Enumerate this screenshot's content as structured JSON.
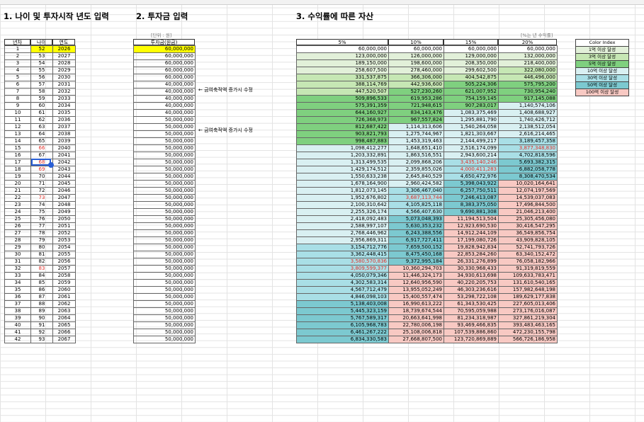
{
  "sections": {
    "s1": "1. 나이 및 투자시작 년도 입력",
    "s2": "2. 투자금 입력",
    "s3": "3. 수익률에 따른 자산",
    "unit": "[단위 : 원]",
    "note_right": "[%는 년 수익률]"
  },
  "headers": {
    "year": "년차",
    "age": "나이",
    "yr": "연도",
    "inv": "투자금(원금)",
    "r5": "5%",
    "r10": "10%",
    "r15": "15%",
    "r20": "20%"
  },
  "notes": {
    "n1": "← 금여축적액 증가시 수정",
    "n2": "← 금여축적액 증가시 수정"
  },
  "legend": {
    "title": "Color Index",
    "items": [
      "1억 이상 달성",
      "3억 이상 달성",
      "5억 이상 달성",
      "10억 이상 달성",
      "30억 이상 달성",
      "50억 이상 달성",
      "100억 이상 달성"
    ]
  },
  "colors": {
    "g1": "#e2f0d9",
    "g3": "#c6e7b4",
    "g5": "#7fd07f",
    "g10": "#d9f0f2",
    "g30": "#a9dfe6",
    "g50": "#7cc9d0",
    "g100": "#f8c9c3",
    "yellow": "#ffff00",
    "red": "#e0302a"
  },
  "rows": [
    {
      "n": "1",
      "age": "52",
      "yr": "2026",
      "inv": "60,000,000",
      "a": "60,000,000",
      "b": "60,000,000",
      "c": "60,000,000",
      "d": "60,000,000"
    },
    {
      "n": "2",
      "age": "53",
      "yr": "2027",
      "inv": "60,000,000",
      "a": "123,000,000",
      "b": "126,000,000",
      "c": "129,000,000",
      "d": "132,000,000"
    },
    {
      "n": "3",
      "age": "54",
      "yr": "2028",
      "inv": "60,000,000",
      "a": "189,150,000",
      "b": "198,600,000",
      "c": "208,350,000",
      "d": "218,400,000"
    },
    {
      "n": "4",
      "age": "55",
      "yr": "2029",
      "inv": "60,000,000",
      "a": "258,607,500",
      "b": "278,460,000",
      "c": "299,602,500",
      "d": "322,080,000"
    },
    {
      "n": "5",
      "age": "56",
      "yr": "2030",
      "inv": "60,000,000",
      "a": "331,537,875",
      "b": "366,306,000",
      "c": "404,542,875",
      "d": "446,496,000"
    },
    {
      "n": "6",
      "age": "57",
      "yr": "2031",
      "inv": "40,000,000",
      "a": "388,114,769",
      "b": "442,936,600",
      "c": "505,224,306",
      "d": "575,795,200"
    },
    {
      "n": "7",
      "age": "58",
      "yr": "2032",
      "inv": "40,000,000",
      "a": "447,520,507",
      "b": "527,230,260",
      "c": "621,007,952",
      "d": "730,954,240"
    },
    {
      "n": "8",
      "age": "59",
      "yr": "2033",
      "inv": "40,000,000",
      "a": "509,896,533",
      "b": "619,953,286",
      "c": "754,159,145",
      "d": "917,145,088"
    },
    {
      "n": "9",
      "age": "60",
      "yr": "2034",
      "inv": "40,000,000",
      "a": "575,391,359",
      "b": "721,948,615",
      "c": "907,283,017",
      "d": "1,140,574,106"
    },
    {
      "n": "10",
      "age": "61",
      "yr": "2035",
      "inv": "40,000,000",
      "a": "644,160,927",
      "b": "834,143,476",
      "c": "1,083,375,469",
      "d": "1,408,688,927"
    },
    {
      "n": "11",
      "age": "62",
      "yr": "2036",
      "inv": "50,000,000",
      "a": "726,368,973",
      "b": "967,557,824",
      "c": "1,295,881,790",
      "d": "1,740,426,712"
    },
    {
      "n": "12",
      "age": "63",
      "yr": "2037",
      "inv": "50,000,000",
      "a": "812,687,422",
      "b": "1,114,313,606",
      "c": "1,540,264,058",
      "d": "2,138,512,054"
    },
    {
      "n": "13",
      "age": "64",
      "yr": "2038",
      "inv": "50,000,000",
      "a": "903,821,793",
      "b": "1,275,744,967",
      "c": "1,821,303,667",
      "d": "2,616,214,465"
    },
    {
      "n": "14",
      "age": "65",
      "yr": "2039",
      "inv": "50,000,000",
      "a": "998,487,883",
      "b": "1,453,319,463",
      "c": "2,144,499,217",
      "d": "3,189,457,358"
    },
    {
      "n": "15",
      "age": "66",
      "yr": "2040",
      "inv": "50,000,000",
      "a": "1,098,412,277",
      "b": "1,648,651,410",
      "c": "2,516,174,099",
      "d": "3,877,348,830"
    },
    {
      "n": "16",
      "age": "67",
      "yr": "2041",
      "inv": "50,000,000",
      "a": "1,203,332,891",
      "b": "1,863,516,551",
      "c": "2,943,600,214",
      "d": "4,702,818,596"
    },
    {
      "n": "17",
      "age": "68",
      "yr": "2042",
      "inv": "50,000,000",
      "a": "1,313,499,535",
      "b": "2,099,868,206",
      "c": "3,435,140,246",
      "d": "5,693,382,315"
    },
    {
      "n": "18",
      "age": "69",
      "yr": "2043",
      "inv": "50,000,000",
      "a": "1,429,174,512",
      "b": "2,359,855,026",
      "c": "4,000,411,283",
      "d": "6,882,058,778"
    },
    {
      "n": "19",
      "age": "70",
      "yr": "2044",
      "inv": "50,000,000",
      "a": "1,550,633,238",
      "b": "2,645,840,529",
      "c": "4,650,472,976",
      "d": "8,308,470,534"
    },
    {
      "n": "20",
      "age": "71",
      "yr": "2045",
      "inv": "50,000,000",
      "a": "1,678,164,900",
      "b": "2,960,424,582",
      "c": "5,398,043,922",
      "d": "10,020,164,641"
    },
    {
      "n": "21",
      "age": "72",
      "yr": "2046",
      "inv": "50,000,000",
      "a": "1,812,073,145",
      "b": "3,306,467,040",
      "c": "6,257,750,511",
      "d": "12,074,197,569"
    },
    {
      "n": "22",
      "age": "73",
      "yr": "2047",
      "inv": "50,000,000",
      "a": "1,952,676,802",
      "b": "3,687,113,744",
      "c": "7,246,413,087",
      "d": "14,539,037,083"
    },
    {
      "n": "23",
      "age": "74",
      "yr": "2048",
      "inv": "50,000,000",
      "a": "2,100,310,642",
      "b": "4,105,825,118",
      "c": "8,383,375,050",
      "d": "17,496,844,500"
    },
    {
      "n": "24",
      "age": "75",
      "yr": "2049",
      "inv": "50,000,000",
      "a": "2,255,326,174",
      "b": "4,566,407,630",
      "c": "9,690,881,308",
      "d": "21,046,213,400"
    },
    {
      "n": "25",
      "age": "76",
      "yr": "2050",
      "inv": "50,000,000",
      "a": "2,418,092,483",
      "b": "5,073,048,393",
      "c": "11,194,513,504",
      "d": "25,305,456,080"
    },
    {
      "n": "26",
      "age": "77",
      "yr": "2051",
      "inv": "50,000,000",
      "a": "2,588,997,107",
      "b": "5,630,353,232",
      "c": "12,923,690,530",
      "d": "30,416,547,295"
    },
    {
      "n": "27",
      "age": "78",
      "yr": "2052",
      "inv": "50,000,000",
      "a": "2,768,446,962",
      "b": "6,243,388,556",
      "c": "14,912,244,109",
      "d": "36,549,856,754"
    },
    {
      "n": "28",
      "age": "79",
      "yr": "2053",
      "inv": "50,000,000",
      "a": "2,956,869,311",
      "b": "6,917,727,411",
      "c": "17,199,080,726",
      "d": "43,909,828,105"
    },
    {
      "n": "29",
      "age": "80",
      "yr": "2054",
      "inv": "50,000,000",
      "a": "3,154,712,776",
      "b": "7,659,500,152",
      "c": "19,828,942,834",
      "d": "52,741,793,726"
    },
    {
      "n": "30",
      "age": "81",
      "yr": "2055",
      "inv": "50,000,000",
      "a": "3,362,448,415",
      "b": "8,475,450,168",
      "c": "22,853,284,260",
      "d": "63,340,152,472"
    },
    {
      "n": "31",
      "age": "82",
      "yr": "2056",
      "inv": "50,000,000",
      "a": "3,580,570,836",
      "b": "9,372,995,184",
      "c": "26,331,276,899",
      "d": "76,058,182,966"
    },
    {
      "n": "32",
      "age": "83",
      "yr": "2057",
      "inv": "50,000,000",
      "a": "3,809,599,377",
      "b": "10,360,294,703",
      "c": "30,330,968,433",
      "d": "91,319,819,559"
    },
    {
      "n": "33",
      "age": "84",
      "yr": "2058",
      "inv": "50,000,000",
      "a": "4,050,079,346",
      "b": "11,446,324,173",
      "c": "34,930,613,698",
      "d": "109,633,783,471"
    },
    {
      "n": "34",
      "age": "85",
      "yr": "2059",
      "inv": "50,000,000",
      "a": "4,302,583,314",
      "b": "12,640,956,590",
      "c": "40,220,205,753",
      "d": "131,610,540,165"
    },
    {
      "n": "35",
      "age": "86",
      "yr": "2060",
      "inv": "50,000,000",
      "a": "4,567,712,479",
      "b": "13,955,052,249",
      "c": "46,303,236,616",
      "d": "157,982,648,198"
    },
    {
      "n": "36",
      "age": "87",
      "yr": "2061",
      "inv": "50,000,000",
      "a": "4,846,098,103",
      "b": "15,400,557,474",
      "c": "53,298,722,108",
      "d": "189,629,177,838"
    },
    {
      "n": "37",
      "age": "88",
      "yr": "2062",
      "inv": "50,000,000",
      "a": "5,138,403,008",
      "b": "16,990,613,222",
      "c": "61,343,530,425",
      "d": "227,605,013,406"
    },
    {
      "n": "38",
      "age": "89",
      "yr": "2063",
      "inv": "50,000,000",
      "a": "5,445,323,159",
      "b": "18,739,674,544",
      "c": "70,595,059,988",
      "d": "273,176,016,087"
    },
    {
      "n": "39",
      "age": "90",
      "yr": "2064",
      "inv": "50,000,000",
      "a": "5,767,589,317",
      "b": "20,663,641,998",
      "c": "81,234,318,987",
      "d": "327,861,219,304"
    },
    {
      "n": "40",
      "age": "91",
      "yr": "2065",
      "inv": "50,000,000",
      "a": "6,105,968,783",
      "b": "22,780,006,198",
      "c": "93,469,466,835",
      "d": "393,483,463,165"
    },
    {
      "n": "41",
      "age": "92",
      "yr": "2066",
      "inv": "50,000,000",
      "a": "6,461,267,222",
      "b": "25,108,006,818",
      "c": "107,539,886,860",
      "d": "472,230,155,798"
    },
    {
      "n": "42",
      "age": "93",
      "yr": "2067",
      "inv": "50,000,000",
      "a": "6,834,330,583",
      "b": "27,668,807,500",
      "c": "123,720,869,889",
      "d": "566,726,186,958"
    }
  ]
}
